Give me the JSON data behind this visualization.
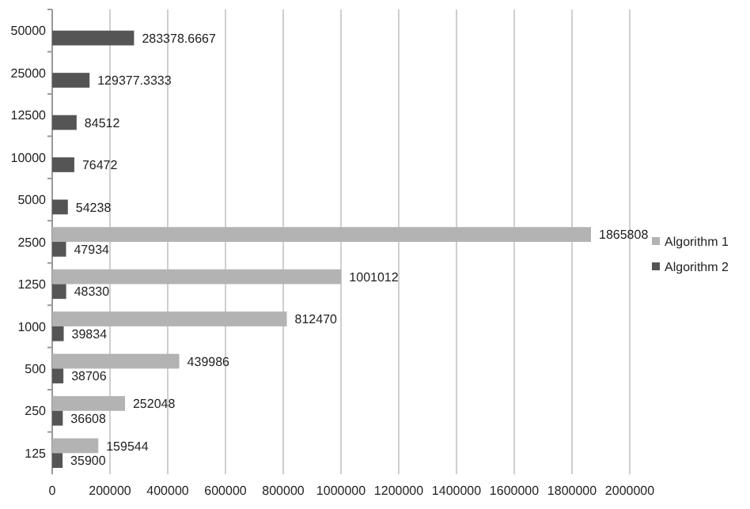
{
  "chart_data": {
    "type": "bar",
    "orientation": "horizontal",
    "categories": [
      "50000",
      "25000",
      "12500",
      "10000",
      "5000",
      "2500",
      "1250",
      "1000",
      "500",
      "250",
      "125"
    ],
    "series": [
      {
        "name": "Algorithm 1",
        "color": "#b3b3b3",
        "values": [
          null,
          null,
          null,
          null,
          null,
          1865808,
          1001012,
          812470,
          439986,
          252048,
          159544
        ]
      },
      {
        "name": "Algorithm 2",
        "color": "#555555",
        "values": [
          283378.6667,
          129377.3333,
          84512,
          76472,
          54238,
          47934,
          48330,
          39834,
          38706,
          36608,
          35900
        ]
      }
    ],
    "xlim": [
      0,
      2000000
    ],
    "xticks": [
      0,
      200000,
      400000,
      600000,
      800000,
      1000000,
      1200000,
      1400000,
      1600000,
      1800000,
      2000000
    ],
    "grid": "x",
    "legend": "right",
    "data_labels": true
  }
}
